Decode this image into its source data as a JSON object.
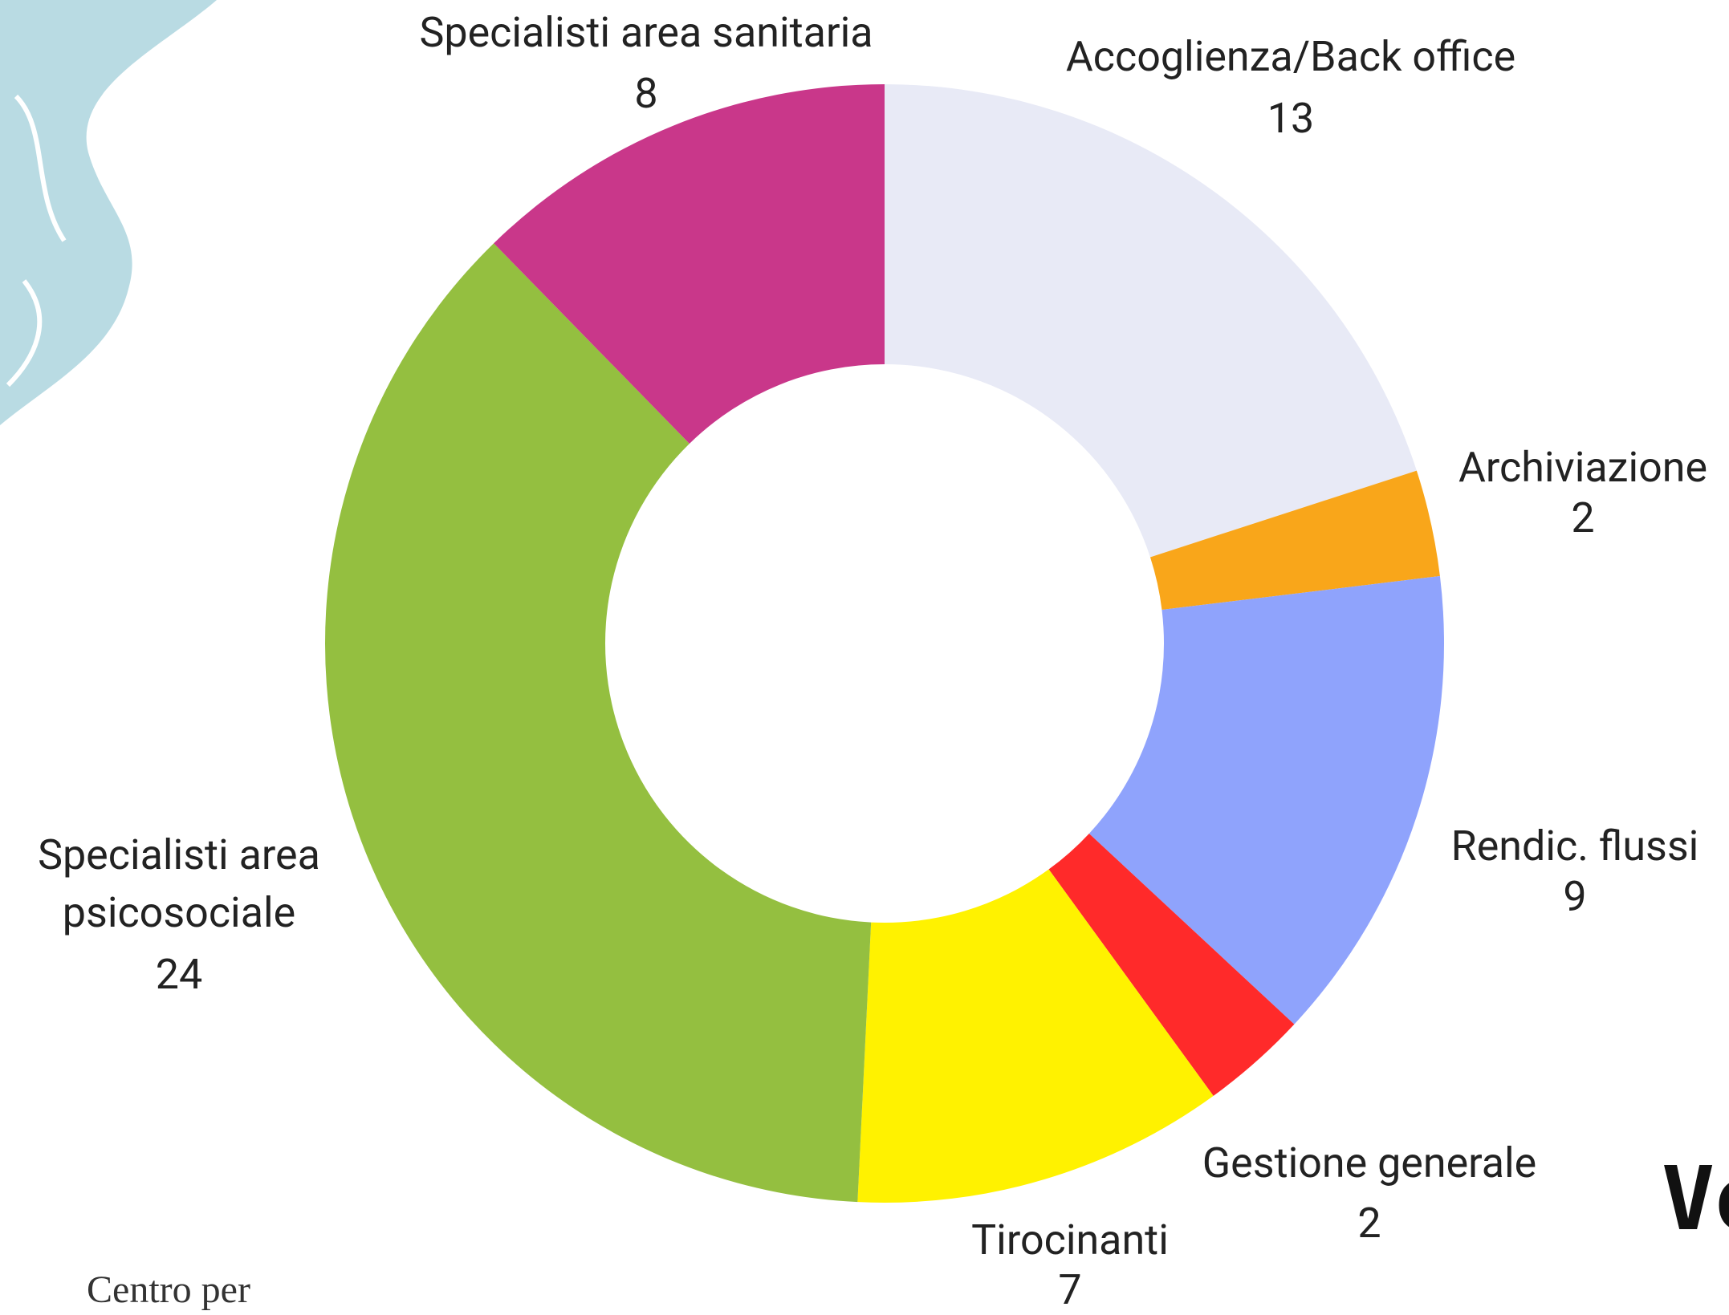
{
  "chart_data": {
    "type": "donut",
    "categories": [
      "Accoglienza/Back office",
      "Archiviazione",
      "Rendic. flussi",
      "Gestione generale",
      "Tirocinanti",
      "Specialisti area psicosociale",
      "Specialisti area sanitaria"
    ],
    "values": [
      13,
      2,
      9,
      2,
      7,
      24,
      8
    ],
    "colors": [
      "#e8eaf6",
      "#f9a61a",
      "#8fa3fc",
      "#ff2a2a",
      "#fff200",
      "#94bf40",
      "#c9378a"
    ]
  },
  "logo_text": "Centro per",
  "side_text": "Vo"
}
